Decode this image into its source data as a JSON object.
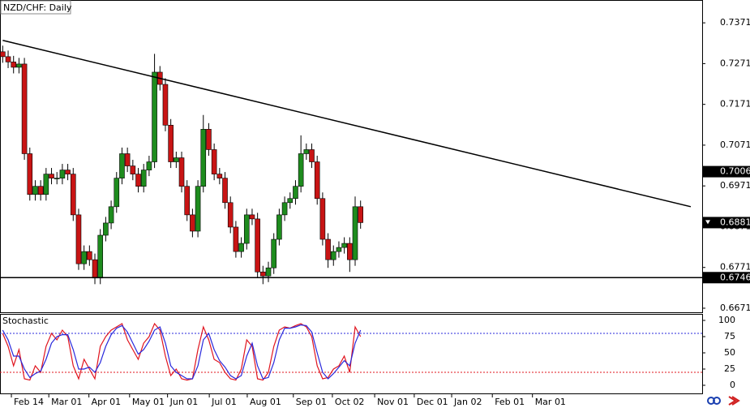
{
  "chart_data": [
    {
      "type": "candlestick",
      "title": "NZD/CHF: Daily",
      "up_color": "#1e8c1e",
      "down_color": "#c81414",
      "open": [
        0.73,
        0.7288,
        0.7275,
        0.7262,
        0.727,
        0.705,
        0.695,
        0.697,
        0.695,
        0.7,
        0.699,
        0.699,
        0.701,
        0.7,
        0.69,
        0.678,
        0.681,
        0.679,
        0.6745,
        0.685,
        0.688,
        0.692,
        0.699,
        0.705,
        0.702,
        0.7,
        0.697,
        0.701,
        0.703,
        0.725,
        0.722,
        0.712,
        0.703,
        0.704,
        0.697,
        0.69,
        0.686,
        0.697,
        0.711,
        0.706,
        0.7,
        0.699,
        0.693,
        0.687,
        0.681,
        0.683,
        0.69,
        0.689,
        0.676,
        0.675,
        0.677,
        0.684,
        0.69,
        0.693,
        0.694,
        0.697,
        0.705,
        0.706,
        0.703,
        0.694,
        0.684,
        0.679,
        0.681,
        0.682,
        0.683,
        0.679,
        0.692
      ],
      "high": [
        0.7315,
        0.7303,
        0.729,
        0.7285,
        0.7285,
        0.7065,
        0.6985,
        0.6985,
        0.7015,
        0.7015,
        0.7005,
        0.7025,
        0.7025,
        0.7015,
        0.6915,
        0.6825,
        0.6825,
        0.6805,
        0.6865,
        0.6895,
        0.6935,
        0.7005,
        0.7065,
        0.7065,
        0.7035,
        0.7015,
        0.7025,
        0.7045,
        0.7295,
        0.7265,
        0.7235,
        0.7135,
        0.7055,
        0.7055,
        0.6985,
        0.6915,
        0.6985,
        0.7145,
        0.7125,
        0.7075,
        0.7015,
        0.7005,
        0.6945,
        0.6885,
        0.6845,
        0.6915,
        0.6915,
        0.6905,
        0.6775,
        0.6785,
        0.6855,
        0.6915,
        0.6945,
        0.6955,
        0.6985,
        0.7095,
        0.7075,
        0.7075,
        0.7045,
        0.6955,
        0.6855,
        0.6825,
        0.6835,
        0.6845,
        0.6845,
        0.6945,
        0.6935
      ],
      "low": [
        0.7273,
        0.726,
        0.7247,
        0.7247,
        0.7035,
        0.6935,
        0.6935,
        0.6935,
        0.6935,
        0.6975,
        0.6975,
        0.6975,
        0.6985,
        0.6885,
        0.6765,
        0.6765,
        0.6775,
        0.673,
        0.673,
        0.6835,
        0.6865,
        0.6905,
        0.6975,
        0.7005,
        0.6985,
        0.6955,
        0.6955,
        0.6995,
        0.7015,
        0.7205,
        0.7105,
        0.7015,
        0.7015,
        0.6955,
        0.6885,
        0.6845,
        0.6845,
        0.6955,
        0.7045,
        0.6985,
        0.6975,
        0.6915,
        0.6855,
        0.6795,
        0.6795,
        0.6815,
        0.6875,
        0.6745,
        0.673,
        0.6735,
        0.6755,
        0.6825,
        0.6885,
        0.6915,
        0.6925,
        0.6955,
        0.7035,
        0.7015,
        0.6925,
        0.6825,
        0.677,
        0.6775,
        0.6795,
        0.6805,
        0.676,
        0.6775,
        0.6866
      ],
      "close": [
        0.7288,
        0.7275,
        0.7262,
        0.727,
        0.705,
        0.695,
        0.697,
        0.695,
        0.7,
        0.699,
        0.699,
        0.701,
        0.7,
        0.69,
        0.678,
        0.681,
        0.679,
        0.6745,
        0.685,
        0.688,
        0.692,
        0.699,
        0.705,
        0.702,
        0.7,
        0.697,
        0.701,
        0.703,
        0.725,
        0.722,
        0.712,
        0.703,
        0.704,
        0.697,
        0.69,
        0.686,
        0.697,
        0.711,
        0.706,
        0.7,
        0.699,
        0.693,
        0.687,
        0.681,
        0.683,
        0.69,
        0.689,
        0.676,
        0.675,
        0.677,
        0.684,
        0.69,
        0.693,
        0.694,
        0.697,
        0.705,
        0.706,
        0.703,
        0.694,
        0.684,
        0.679,
        0.681,
        0.682,
        0.683,
        0.679,
        0.692,
        0.6881
      ],
      "xlim": [
        -0.5,
        129
      ],
      "ylim": [
        0.6661,
        0.7427
      ],
      "yticks": [
        0.7371,
        0.7271,
        0.7171,
        0.7071,
        0.6971,
        0.6871,
        0.6771,
        0.6671
      ],
      "trendline": {
        "x": [
          0,
          126.9
        ],
        "y": [
          0.7328,
          0.692
        ]
      },
      "hline": 0.6746,
      "price_labels": [
        0.7006,
        0.6881,
        0.6746
      ],
      "grid": false
    },
    {
      "type": "line",
      "title": "Stochastic",
      "series": [
        {
          "color": "#e0141e",
          "values": [
            80,
            60,
            30,
            55,
            10,
            8,
            30,
            20,
            60,
            80,
            70,
            85,
            75,
            30,
            10,
            40,
            25,
            10,
            60,
            75,
            85,
            90,
            95,
            70,
            55,
            40,
            65,
            75,
            95,
            85,
            45,
            15,
            25,
            10,
            8,
            10,
            55,
            90,
            70,
            40,
            35,
            20,
            10,
            8,
            25,
            70,
            60,
            10,
            8,
            20,
            60,
            85,
            90,
            88,
            92,
            95,
            90,
            75,
            30,
            10,
            12,
            25,
            30,
            45,
            20,
            90,
            75
          ]
        },
        {
          "color": "#2828dc",
          "values": [
            85,
            70,
            45,
            45,
            25,
            12,
            18,
            22,
            40,
            65,
            75,
            78,
            78,
            55,
            25,
            25,
            28,
            20,
            35,
            60,
            78,
            88,
            92,
            82,
            65,
            48,
            55,
            68,
            85,
            90,
            65,
            30,
            20,
            15,
            10,
            10,
            30,
            70,
            80,
            55,
            38,
            28,
            15,
            10,
            15,
            45,
            65,
            30,
            10,
            12,
            35,
            70,
            88,
            88,
            90,
            93,
            92,
            82,
            50,
            20,
            10,
            18,
            28,
            38,
            30,
            65,
            85
          ]
        }
      ],
      "levels": [
        {
          "value": 80,
          "color": "#2828dc"
        },
        {
          "value": 20,
          "color": "#e0141e"
        }
      ],
      "xlim": [
        -0.5,
        129
      ],
      "ylim": [
        -12.5,
        110
      ],
      "yticks": [
        0,
        25,
        50,
        75,
        100
      ],
      "xticks": [
        {
          "value": 1.6,
          "label": "Feb 14"
        },
        {
          "value": 8.5,
          "label": "Mar 01"
        },
        {
          "value": 15.9,
          "label": "Apr 01"
        },
        {
          "value": 23.4,
          "label": "May 01"
        },
        {
          "value": 30.4,
          "label": "Jun 01"
        },
        {
          "value": 38.1,
          "label": "Jul 01"
        },
        {
          "value": 45.1,
          "label": "Aug 01"
        },
        {
          "value": 53.6,
          "label": "Sep 01"
        },
        {
          "value": 60.8,
          "label": "Oct 02"
        },
        {
          "value": 68.6,
          "label": "Nov 01"
        },
        {
          "value": 75.9,
          "label": "Dec 01"
        },
        {
          "value": 82.8,
          "label": "Jan 02"
        },
        {
          "value": 90.3,
          "label": "Feb 01"
        },
        {
          "value": 97.7,
          "label": "Mar 01"
        }
      ]
    }
  ]
}
